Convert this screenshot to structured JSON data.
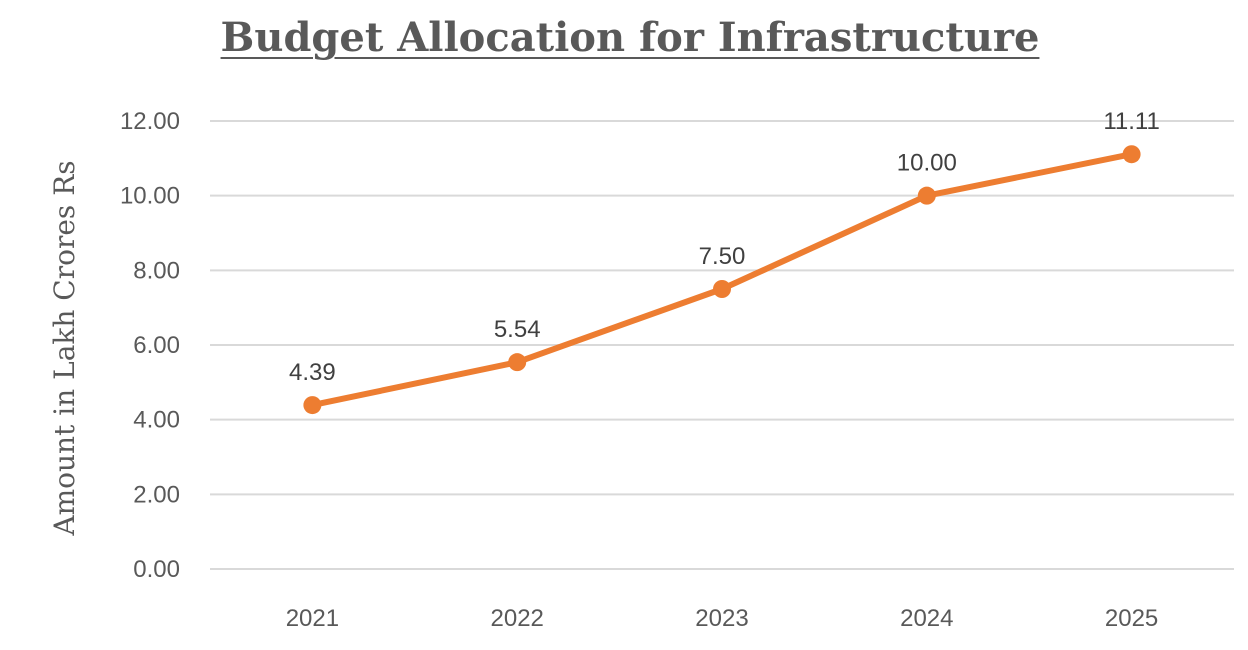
{
  "chart_data": {
    "type": "line",
    "title": "Budget Allocation for Infrastructure",
    "xlabel": "",
    "ylabel": "Amount in Lakh Crores Rs",
    "categories": [
      "2021",
      "2022",
      "2023",
      "2024",
      "2025"
    ],
    "series": [
      {
        "values": [
          4.39,
          5.54,
          7.5,
          10.0,
          11.11
        ],
        "data_labels": [
          "4.39",
          "5.54",
          "7.50",
          "10.00",
          "11.11"
        ],
        "color": "#ED7D31"
      }
    ],
    "ylim": [
      0,
      12
    ],
    "yticks": [
      "0.00",
      "2.00",
      "4.00",
      "6.00",
      "8.00",
      "10.00",
      "12.00"
    ],
    "grid": true,
    "gridline_color": "#d9d9d9",
    "legend": "none"
  }
}
